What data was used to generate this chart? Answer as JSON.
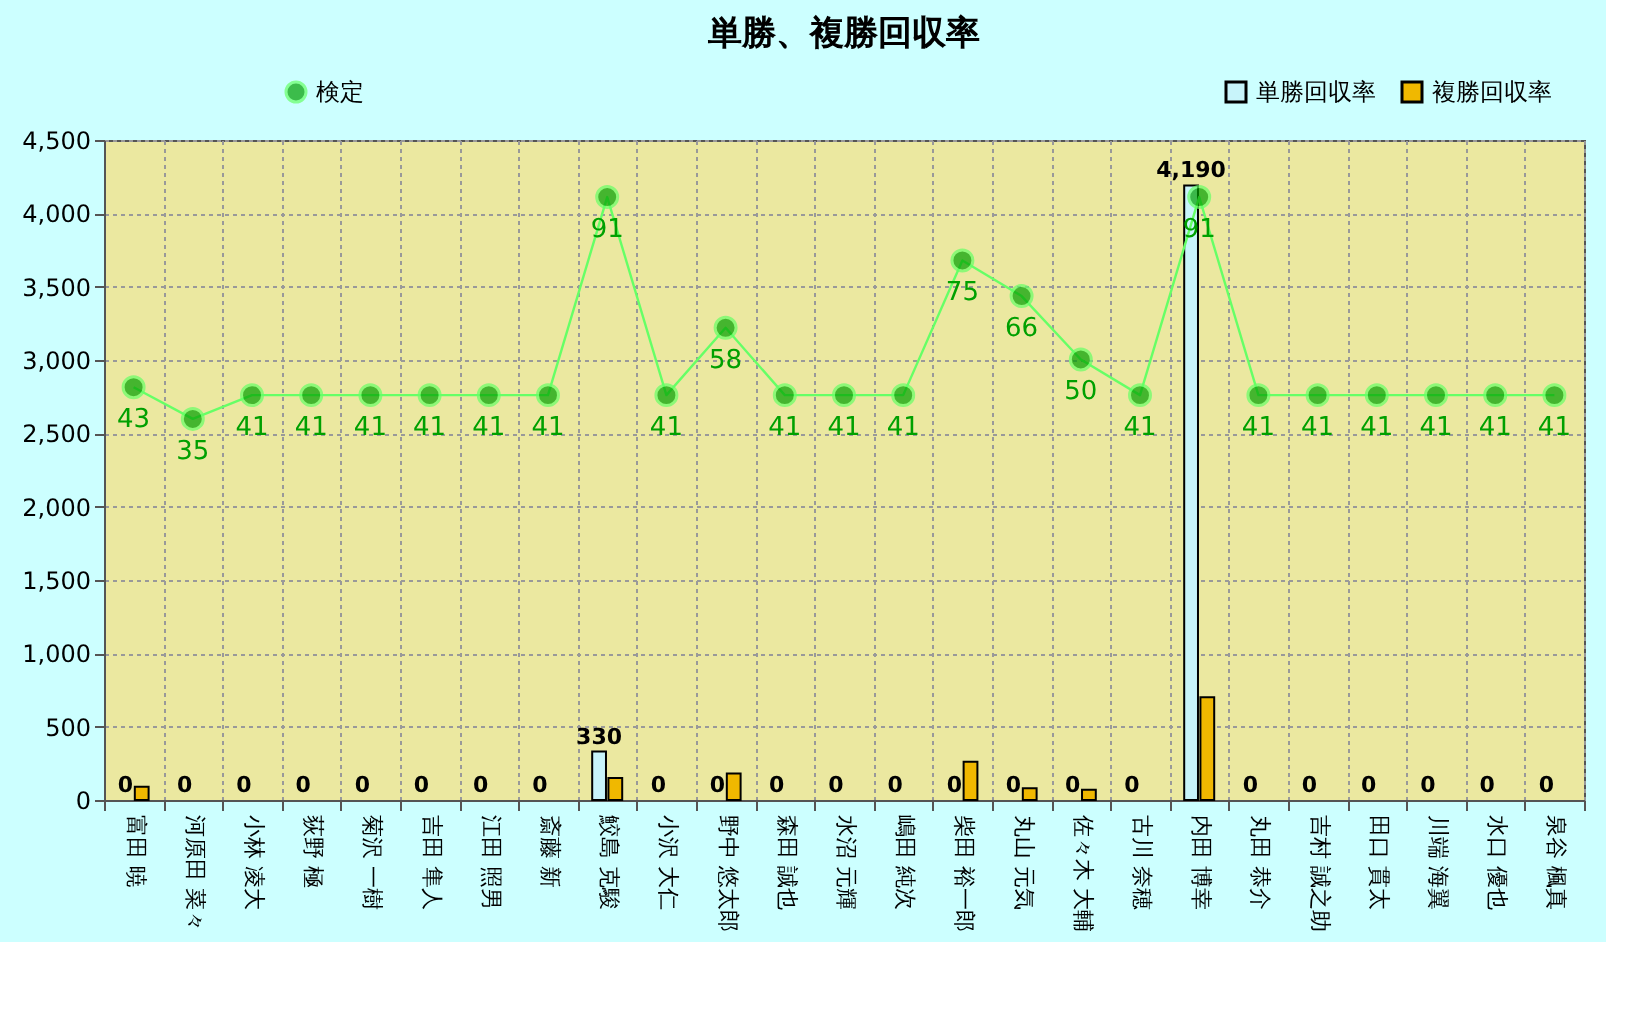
{
  "chart_data": {
    "type": "bar",
    "title": "単勝、複勝回収率",
    "categories": [
      "富田 暁",
      "河原田 菜々",
      "小林 凌大",
      "荻野 極",
      "菊沢 一樹",
      "吉田 隼人",
      "江田 照男",
      "斎藤 新",
      "鮫島 克駿",
      "小沢 大仁",
      "野中 悠太郎",
      "森田 誠也",
      "水沼 元輝",
      "嶋田 純次",
      "柴田 裕一郎",
      "丸山 元気",
      "佐々木 大輔",
      "古川 奈穂",
      "内田 博幸",
      "丸田 恭介",
      "吉村 誠之助",
      "田口 貫太",
      "川端 海翼",
      "水口 優也",
      "泉谷 楓真"
    ],
    "series": [
      {
        "name": "単勝回収率",
        "color": "#c8f4fa",
        "values": [
          0,
          0,
          0,
          0,
          0,
          0,
          0,
          0,
          330,
          0,
          0,
          0,
          0,
          0,
          0,
          0,
          0,
          0,
          4190,
          0,
          0,
          0,
          0,
          0,
          0
        ],
        "value_labels": [
          "0",
          "0",
          "0",
          "0",
          "0",
          "0",
          "0",
          "0",
          "330",
          "0",
          "0",
          "0",
          "0",
          "0",
          "0",
          "0",
          "0",
          "0",
          "4,190",
          "0",
          "0",
          "0",
          "0",
          "0",
          "0"
        ]
      },
      {
        "name": "複勝回収率",
        "color": "#f0b800",
        "values": [
          90,
          0,
          0,
          0,
          0,
          0,
          0,
          0,
          150,
          0,
          180,
          0,
          0,
          0,
          260,
          80,
          70,
          0,
          700,
          0,
          0,
          0,
          0,
          0,
          0
        ]
      },
      {
        "name": "検定",
        "type": "line",
        "axis": "y2",
        "color": "#00a000",
        "values": [
          43,
          35,
          41,
          41,
          41,
          41,
          41,
          41,
          91,
          41,
          58,
          41,
          41,
          41,
          75,
          66,
          50,
          41,
          91,
          41,
          41,
          41,
          41,
          41,
          41
        ],
        "value_labels": [
          "43",
          "35",
          "41",
          "41",
          "41",
          "41",
          "41",
          "41",
          "91",
          "41",
          "58",
          "41",
          "41",
          "41",
          "75",
          "66",
          "50",
          "41",
          "91",
          "41",
          "41",
          "41",
          "41",
          "41",
          "41"
        ]
      }
    ],
    "ylim": [
      0,
      4500
    ],
    "yticks": [
      {
        "value": 0,
        "label": "0"
      },
      {
        "value": 500,
        "label": "500"
      },
      {
        "value": 1000,
        "label": "1,000"
      },
      {
        "value": 1500,
        "label": "1,500"
      },
      {
        "value": 2000,
        "label": "2,000"
      },
      {
        "value": 2500,
        "label": "2,500"
      },
      {
        "value": 3000,
        "label": "3,000"
      },
      {
        "value": 3500,
        "label": "3,500"
      },
      {
        "value": 4000,
        "label": "4,000"
      },
      {
        "value": 4500,
        "label": "4,500"
      }
    ],
    "y2lim": [
      -61.2,
      105.4
    ],
    "grid": true,
    "legend": "top",
    "marker": "circle",
    "line_style": "solid"
  }
}
